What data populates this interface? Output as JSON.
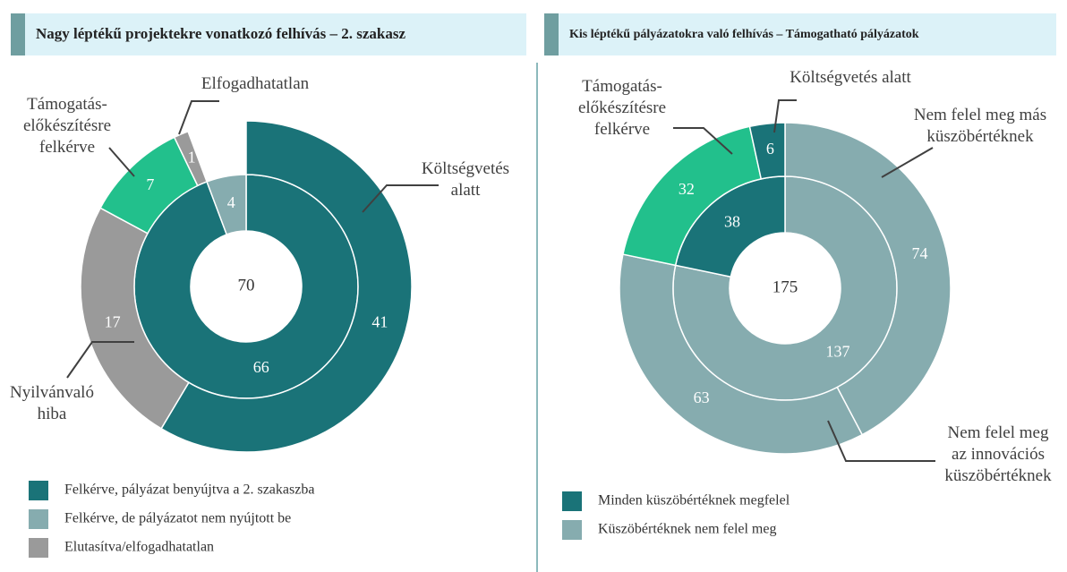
{
  "chart_data": [
    {
      "type": "donut",
      "title": "Nagy léptékű projektekre vonatkozó felhívás – 2. szakasz",
      "total": 70,
      "rings": [
        {
          "values": [
            66,
            4
          ],
          "colors": [
            "#1a7378",
            "#86acaf"
          ]
        },
        {
          "values": [
            41,
            17,
            7,
            1
          ],
          "colors": [
            "#1a7378",
            "#9a9a9a",
            "#22c08c",
            "#9a9a9a"
          ],
          "labels": [
            [
              "Költségvetés",
              "alatt"
            ],
            [
              "Nyilvánvaló",
              "hiba"
            ],
            [
              "Támogatás-",
              "előkészítésre",
              "felkérve"
            ],
            [
              "Elfogadhatatlan"
            ]
          ]
        }
      ],
      "legend": [
        {
          "name": "Felkérve, pályázat benyújtva a 2. szakaszba",
          "color": "#1a7378"
        },
        {
          "name": "Felkérve, de pályázatot nem nyújtott be",
          "color": "#86acaf"
        },
        {
          "name": "Elutasítva/elfogadhatatlan",
          "color": "#9a9a9a"
        }
      ]
    },
    {
      "type": "donut",
      "title": "Kis léptékű pályázatokra való felhívás – Támogatható pályázatok",
      "total": 175,
      "rings": [
        {
          "values": [
            137,
            38
          ],
          "colors": [
            "#86acaf",
            "#1a7378"
          ]
        },
        {
          "values": [
            74,
            63,
            32,
            6
          ],
          "colors": [
            "#86acaf",
            "#86acaf",
            "#22c08c",
            "#1a7378"
          ],
          "labels": [
            [
              "Nem felel meg más",
              "küszöbértéknek"
            ],
            [
              "Nem felel meg",
              "az innovációs",
              "küszöbértéknek"
            ],
            [
              "Támogatás-",
              "előkészítésre",
              "felkérve"
            ],
            [
              "Költségvetés alatt"
            ]
          ]
        }
      ],
      "legend": [
        {
          "name": "Minden küszöbértéknek megfelel",
          "color": "#1a7378"
        },
        {
          "name": "Küszöbértéknek nem felel meg",
          "color": "#86acaf"
        }
      ]
    }
  ]
}
